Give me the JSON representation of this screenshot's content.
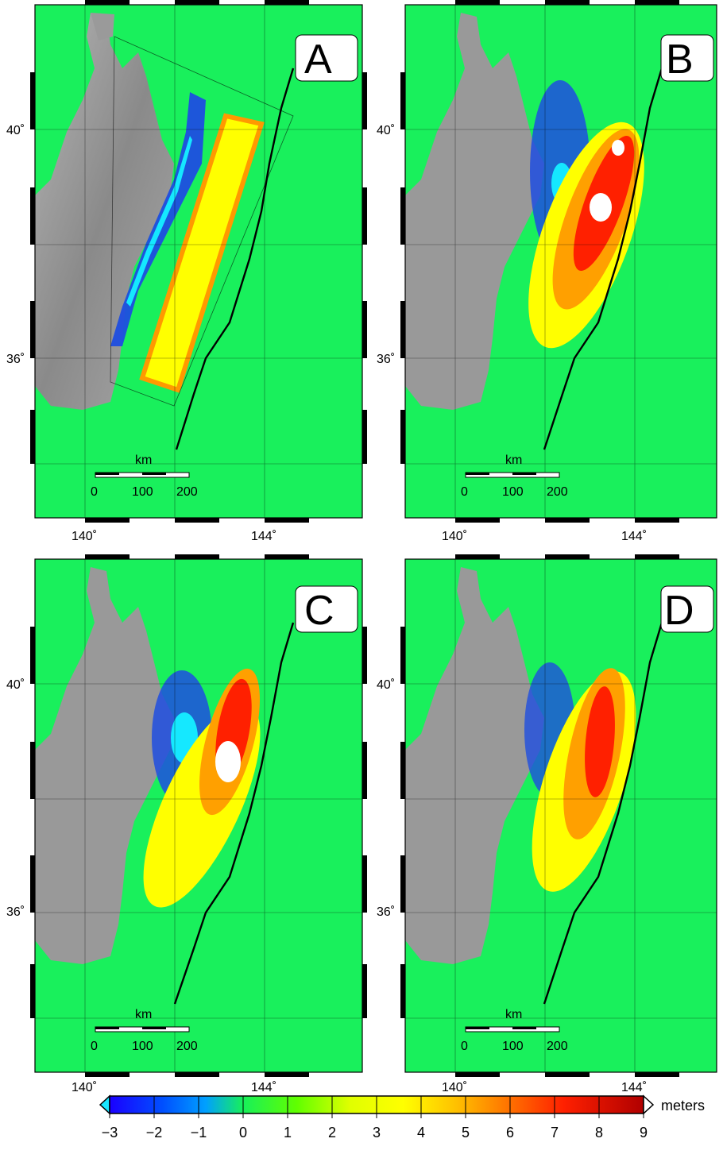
{
  "panels": [
    {
      "id": "A",
      "letter": "A"
    },
    {
      "id": "B",
      "letter": "B"
    },
    {
      "id": "C",
      "letter": "C"
    },
    {
      "id": "D",
      "letter": "D"
    }
  ],
  "axes": {
    "lat_labels": [
      "40˚",
      "36˚"
    ],
    "lon_labels": [
      "140˚",
      "144˚"
    ]
  },
  "scale_bar": {
    "unit": "km",
    "ticks": [
      "0",
      "100",
      "200"
    ]
  },
  "colorbar": {
    "unit": "meters",
    "ticks": [
      "−3",
      "−2",
      "−1",
      "0",
      "1",
      "2",
      "3",
      "4",
      "5",
      "6",
      "7",
      "8",
      "9"
    ],
    "min": -3,
    "max": 9,
    "colors": [
      "#1a00ff",
      "#0080ff",
      "#19e6ff",
      "#17f05a",
      "#a0ff00",
      "#ffff00",
      "#ffc000",
      "#ff7000",
      "#ff2000",
      "#b00000"
    ]
  },
  "style": {
    "ocean_color": "#19f05c",
    "land_color": "#8f8f8f",
    "cyan_color": "#15e8ff",
    "blue_color": "#1e4de0"
  }
}
